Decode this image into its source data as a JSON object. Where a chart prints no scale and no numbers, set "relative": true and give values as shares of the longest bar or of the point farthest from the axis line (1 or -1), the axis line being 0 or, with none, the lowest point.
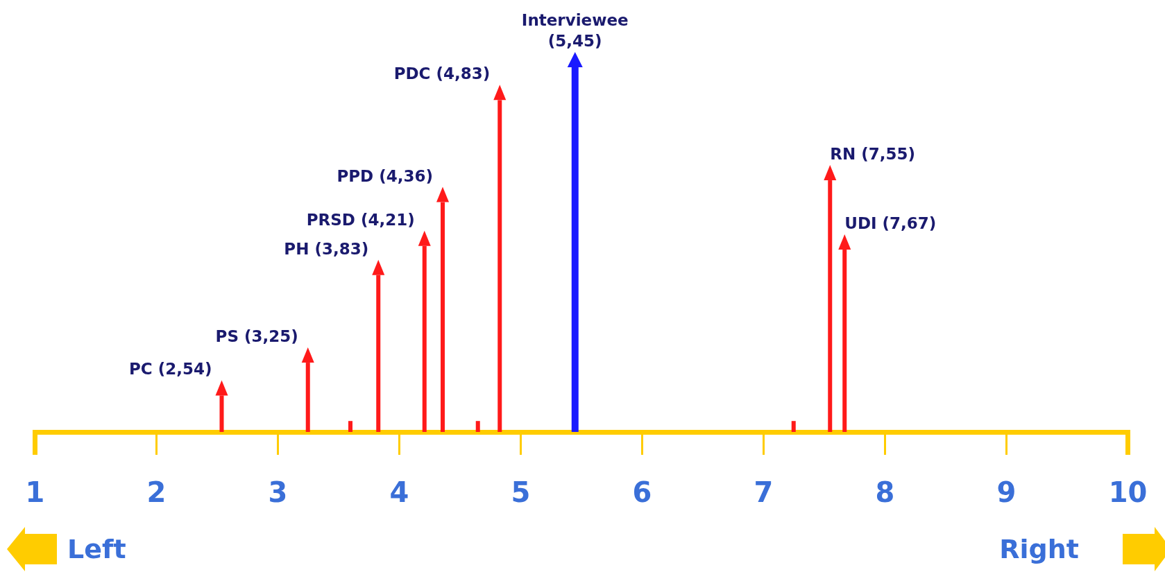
{
  "chart_data": {
    "type": "bar",
    "relative": true,
    "xlim": [
      1,
      10
    ],
    "xticks": [
      1,
      2,
      3,
      4,
      5,
      6,
      7,
      8,
      9,
      10
    ],
    "series": [
      {
        "color": "#ff1a1a",
        "x": [
          2.54,
          3.25,
          3.6,
          3.83,
          4.21,
          4.36,
          4.65,
          4.83,
          7.25,
          7.55,
          7.67
        ],
        "values": [
          0.1,
          0.19,
          0.03,
          0.43,
          0.51,
          0.63,
          0.03,
          0.91,
          0.03,
          0.69,
          0.5
        ]
      },
      {
        "color": "#1a1aff",
        "x": [
          5.45
        ],
        "values": [
          1
        ]
      }
    ],
    "annotations": [
      {
        "text": "PC (2,54)",
        "x": 2.54,
        "y": 0.1
      },
      {
        "text": "PS (3,25)",
        "x": 3.25,
        "y": 0.19
      },
      {
        "text": "PH (3,83)",
        "x": 3.83,
        "y": 0.43
      },
      {
        "text": "PRSD (4,21)",
        "x": 4.21,
        "y": 0.51
      },
      {
        "text": "PPD (4,36)",
        "x": 4.36,
        "y": 0.63
      },
      {
        "text": "PDC (4,83)",
        "x": 4.83,
        "y": 0.91
      },
      {
        "text": "Interviewee\n(5,45)",
        "x": 5.45,
        "y": 1
      },
      {
        "text": "RN (7,55)",
        "x": 7.55,
        "y": 0.69
      },
      {
        "text": "UDI (7,67)",
        "x": 7.67,
        "y": 0.5
      },
      "Left",
      "Right"
    ]
  }
}
